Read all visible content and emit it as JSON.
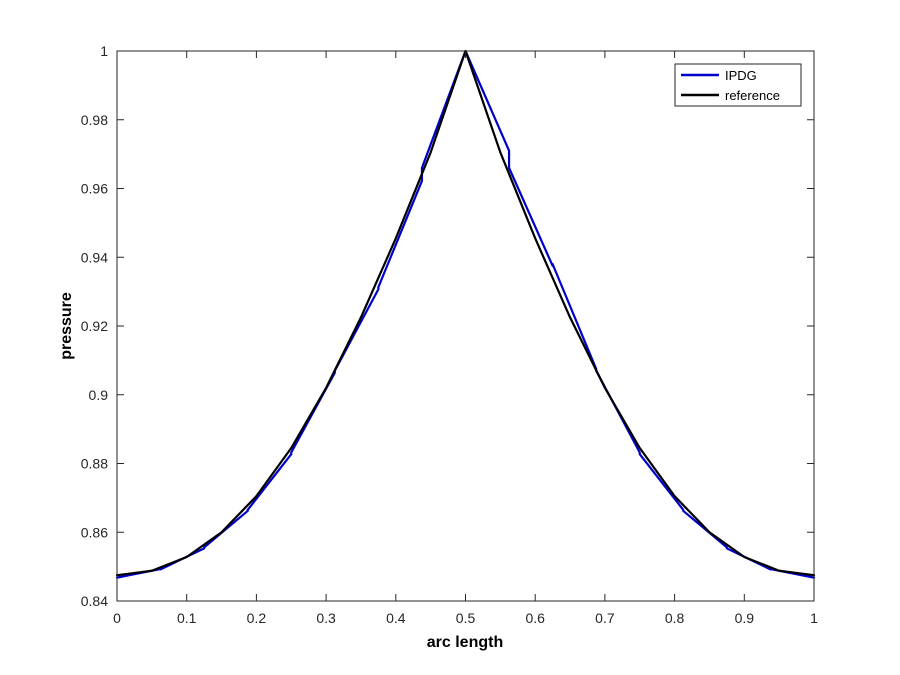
{
  "chart_data": {
    "type": "line",
    "title": "",
    "xlabel": "arc length",
    "ylabel": "pressure",
    "xlim": [
      0,
      1
    ],
    "ylim": [
      0.84,
      1
    ],
    "grid": false,
    "legend_position": "top-right",
    "xticks": [
      {
        "value": 0,
        "label": "0"
      },
      {
        "value": 0.1,
        "label": "0.1"
      },
      {
        "value": 0.2,
        "label": "0.2"
      },
      {
        "value": 0.3,
        "label": "0.3"
      },
      {
        "value": 0.4,
        "label": "0.4"
      },
      {
        "value": 0.5,
        "label": "0.5"
      },
      {
        "value": 0.6,
        "label": "0.6"
      },
      {
        "value": 0.7,
        "label": "0.7"
      },
      {
        "value": 0.8,
        "label": "0.8"
      },
      {
        "value": 0.9,
        "label": "0.9"
      },
      {
        "value": 1,
        "label": "1"
      }
    ],
    "yticks": [
      {
        "value": 0.84,
        "label": "0.84"
      },
      {
        "value": 0.86,
        "label": "0.86"
      },
      {
        "value": 0.88,
        "label": "0.88"
      },
      {
        "value": 0.9,
        "label": "0.9"
      },
      {
        "value": 0.92,
        "label": "0.92"
      },
      {
        "value": 0.94,
        "label": "0.94"
      },
      {
        "value": 0.96,
        "label": "0.96"
      },
      {
        "value": 0.98,
        "label": "0.98"
      },
      {
        "value": 1,
        "label": "1"
      }
    ],
    "series": [
      {
        "name": "IPDG",
        "color": "#0000cc",
        "x": [
          0,
          0.0625,
          0.0625,
          0.125,
          0.125,
          0.1875,
          0.1875,
          0.25,
          0.25,
          0.3125,
          0.3125,
          0.375,
          0.375,
          0.4375,
          0.4375,
          0.5,
          0.5,
          0.5625,
          0.5625,
          0.625,
          0.625,
          0.6875,
          0.6875,
          0.75,
          0.75,
          0.8125,
          0.8125,
          0.875,
          0.875,
          0.9375,
          0.9375,
          1
        ],
        "y": [
          0.8468,
          0.8493,
          0.8492,
          0.8553,
          0.8556,
          0.8662,
          0.8665,
          0.8827,
          0.8832,
          0.9064,
          0.907,
          0.9307,
          0.9313,
          0.9622,
          0.966,
          1.0,
          1.0,
          0.971,
          0.966,
          0.9375,
          0.938,
          0.9075,
          0.907,
          0.8832,
          0.8827,
          0.8665,
          0.8662,
          0.8556,
          0.8553,
          0.8492,
          0.8493,
          0.8468
        ]
      },
      {
        "name": "reference",
        "color": "#000000",
        "x": [
          0,
          0.05,
          0.1,
          0.15,
          0.2,
          0.25,
          0.3,
          0.35,
          0.4,
          0.45,
          0.5,
          0.55,
          0.6,
          0.65,
          0.7,
          0.75,
          0.8,
          0.85,
          0.9,
          0.95,
          1
        ],
        "y": [
          0.8475,
          0.8488,
          0.8528,
          0.86,
          0.8705,
          0.8845,
          0.902,
          0.9225,
          0.9455,
          0.9705,
          1.0,
          0.9705,
          0.9455,
          0.9225,
          0.902,
          0.8845,
          0.8705,
          0.86,
          0.8528,
          0.8488,
          0.8475
        ]
      }
    ]
  }
}
